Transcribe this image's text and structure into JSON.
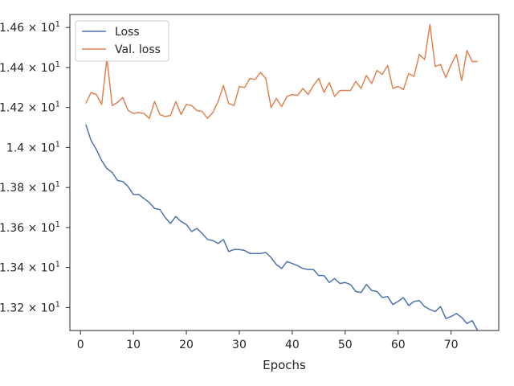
{
  "chart_data": {
    "type": "line",
    "xlabel": "Epochs",
    "ylabel": "",
    "xlim": [
      -2,
      79
    ],
    "ylim": [
      13.085,
      14.665
    ],
    "x_ticks": [
      0,
      10,
      20,
      30,
      40,
      50,
      60,
      70
    ],
    "y_ticks": [
      {
        "value": 13.2,
        "mantissa": "1.32",
        "exp": "1"
      },
      {
        "value": 13.4,
        "mantissa": "1.34",
        "exp": "1"
      },
      {
        "value": 13.6,
        "mantissa": "1.36",
        "exp": "1"
      },
      {
        "value": 13.8,
        "mantissa": "1.38",
        "exp": "1"
      },
      {
        "value": 14.0,
        "mantissa": "1.4",
        "exp": "1"
      },
      {
        "value": 14.2,
        "mantissa": "1.42",
        "exp": "1"
      },
      {
        "value": 14.4,
        "mantissa": "1.44",
        "exp": "1"
      },
      {
        "value": 14.6,
        "mantissa": "1.46",
        "exp": "1"
      }
    ],
    "legend_position": "top-left",
    "series": [
      {
        "name": "Loss",
        "color": "#4c72b0",
        "x": [
          1,
          2,
          3,
          4,
          5,
          6,
          7,
          8,
          9,
          10,
          11,
          12,
          13,
          14,
          15,
          16,
          17,
          18,
          19,
          20,
          21,
          22,
          23,
          24,
          25,
          26,
          27,
          28,
          29,
          30,
          31,
          32,
          33,
          34,
          35,
          36,
          37,
          38,
          39,
          40,
          41,
          42,
          43,
          44,
          45,
          46,
          47,
          48,
          49,
          50,
          51,
          52,
          53,
          54,
          55,
          56,
          57,
          58,
          59,
          60,
          61,
          62,
          63,
          64,
          65,
          66,
          67,
          68,
          69,
          70,
          71,
          72,
          73,
          74,
          75
        ],
        "values": [
          14.115,
          14.035,
          13.99,
          13.935,
          13.895,
          13.875,
          13.835,
          13.83,
          13.805,
          13.765,
          13.765,
          13.745,
          13.725,
          13.695,
          13.69,
          13.65,
          13.62,
          13.655,
          13.63,
          13.615,
          13.58,
          13.595,
          13.57,
          13.54,
          13.535,
          13.52,
          13.54,
          13.48,
          13.49,
          13.49,
          13.485,
          13.47,
          13.47,
          13.47,
          13.475,
          13.45,
          13.415,
          13.395,
          13.43,
          13.42,
          13.41,
          13.395,
          13.39,
          13.39,
          13.36,
          13.36,
          13.325,
          13.345,
          13.32,
          13.325,
          13.315,
          13.28,
          13.275,
          13.315,
          13.285,
          13.28,
          13.25,
          13.255,
          13.215,
          13.23,
          13.25,
          13.21,
          13.23,
          13.235,
          13.205,
          13.19,
          13.18,
          13.205,
          13.145,
          13.155,
          13.17,
          13.15,
          13.12,
          13.135,
          13.085
        ]
      },
      {
        "name": "Val. loss",
        "color": "#dd8452",
        "x": [
          1,
          2,
          3,
          4,
          5,
          6,
          7,
          8,
          9,
          10,
          11,
          12,
          13,
          14,
          15,
          16,
          17,
          18,
          19,
          20,
          21,
          22,
          23,
          24,
          25,
          26,
          27,
          28,
          29,
          30,
          31,
          32,
          33,
          34,
          35,
          36,
          37,
          38,
          39,
          40,
          41,
          42,
          43,
          44,
          45,
          46,
          47,
          48,
          49,
          50,
          51,
          52,
          53,
          54,
          55,
          56,
          57,
          58,
          59,
          60,
          61,
          62,
          63,
          64,
          65,
          66,
          67,
          68,
          69,
          70,
          71,
          72,
          73,
          74,
          75
        ],
        "values": [
          14.22,
          14.275,
          14.265,
          14.215,
          14.445,
          14.21,
          14.225,
          14.25,
          14.185,
          14.17,
          14.175,
          14.17,
          14.145,
          14.23,
          14.165,
          14.155,
          14.16,
          14.23,
          14.165,
          14.215,
          14.21,
          14.185,
          14.18,
          14.145,
          14.175,
          14.23,
          14.31,
          14.22,
          14.21,
          14.305,
          14.3,
          14.345,
          14.34,
          14.375,
          14.345,
          14.2,
          14.245,
          14.205,
          14.255,
          14.265,
          14.26,
          14.295,
          14.265,
          14.31,
          14.345,
          14.275,
          14.325,
          14.255,
          14.285,
          14.285,
          14.285,
          14.33,
          14.295,
          14.36,
          14.32,
          14.385,
          14.365,
          14.41,
          14.295,
          14.305,
          14.29,
          14.37,
          14.355,
          14.465,
          14.44,
          14.615,
          14.405,
          14.415,
          14.35,
          14.415,
          14.465,
          14.335,
          14.485,
          14.43,
          14.43
        ]
      }
    ]
  }
}
